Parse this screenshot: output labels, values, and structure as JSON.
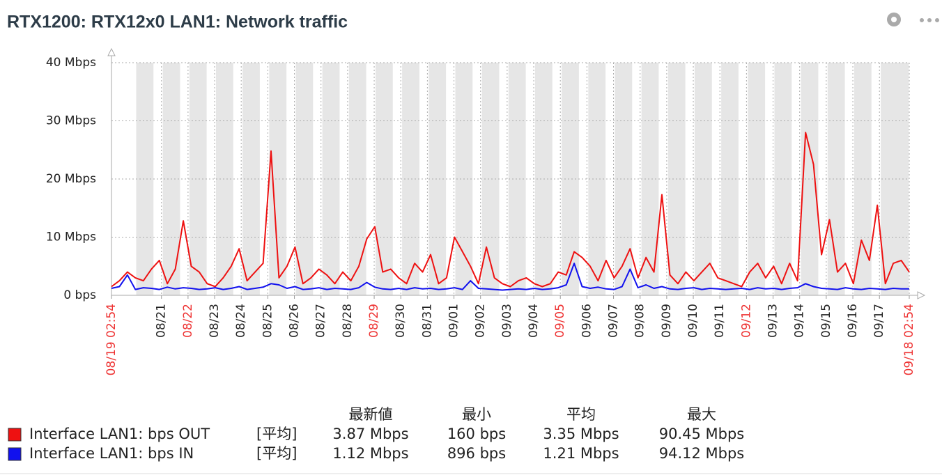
{
  "chart_data": {
    "type": "line",
    "title": "RTX1200: RTX12x0 LAN1: Network traffic",
    "x": [
      0,
      0.3,
      0.6,
      0.9,
      1.2,
      1.5,
      1.8,
      2.1,
      2.4,
      2.7,
      3.0,
      3.3,
      3.6,
      3.9,
      4.2,
      4.5,
      4.8,
      5.1,
      5.4,
      5.7,
      6.0,
      6.3,
      6.6,
      6.9,
      7.2,
      7.5,
      7.8,
      8.1,
      8.4,
      8.7,
      9.0,
      9.3,
      9.6,
      9.9,
      10.2,
      10.5,
      10.8,
      11.1,
      11.4,
      11.7,
      12.0,
      12.3,
      12.6,
      12.9,
      13.2,
      13.5,
      13.8,
      14.1,
      14.4,
      14.7,
      15.0,
      15.3,
      15.6,
      15.9,
      16.2,
      16.5,
      16.8,
      17.1,
      17.4,
      17.7,
      18.0,
      18.3,
      18.6,
      18.9,
      19.2,
      19.5,
      19.8,
      20.1,
      20.4,
      20.7,
      21.0,
      21.3,
      21.6,
      21.9,
      22.2,
      22.5,
      22.8,
      23.1,
      23.4,
      23.7,
      24.0,
      24.3,
      24.6,
      24.9,
      25.2,
      25.5,
      25.8,
      26.1,
      26.4,
      26.7,
      27.0,
      27.3,
      27.6,
      27.9,
      28.2,
      28.5,
      28.8,
      29.1,
      29.4,
      29.7,
      30.0
    ],
    "series": [
      {
        "name": "Interface LAN1: bps OUT",
        "color": "#ee1111",
        "values": [
          1.5,
          2.5,
          4,
          3,
          2.5,
          4.5,
          6,
          2,
          4.5,
          12.8,
          5,
          4,
          2,
          1.5,
          3,
          5,
          8,
          2.5,
          4,
          5.5,
          24.8,
          3,
          5,
          8.3,
          2,
          3,
          4.5,
          3.5,
          2,
          4,
          2.5,
          5,
          9.7,
          11.8,
          4,
          4.5,
          3,
          2,
          5.5,
          4,
          7,
          2,
          3,
          10,
          7.5,
          5,
          2,
          8.3,
          3,
          2,
          1.5,
          2.5,
          3,
          2,
          1.5,
          2,
          4,
          3.5,
          7.5,
          6.5,
          5,
          2.5,
          6,
          3,
          5,
          8,
          3,
          6.5,
          4,
          17.3,
          3.5,
          2,
          4,
          2.5,
          4,
          5.5,
          3,
          2.5,
          2,
          1.5,
          4,
          5.5,
          3,
          5,
          2,
          5.5,
          2.5,
          28,
          22.5,
          7,
          13,
          4,
          5.5,
          2,
          9.5,
          6,
          15.5,
          2,
          5.5,
          6,
          4
        ]
      },
      {
        "name": "Interface LAN1: bps IN",
        "color": "#1111ee",
        "values": [
          1.2,
          1.5,
          3.5,
          1,
          1.3,
          1.2,
          1,
          1.4,
          1.1,
          1.3,
          1.2,
          1,
          1.1,
          1.3,
          1,
          1.2,
          1.5,
          1,
          1.2,
          1.4,
          2,
          1.8,
          1.2,
          1.5,
          1,
          1.1,
          1.3,
          1,
          1.2,
          1.1,
          1,
          1.3,
          2.2,
          1.4,
          1.1,
          1,
          1.2,
          1,
          1.3,
          1.1,
          1.2,
          1,
          1.1,
          1.3,
          1,
          2.5,
          1.2,
          1.1,
          1,
          0.9,
          1,
          1.1,
          1,
          1.2,
          1,
          1.1,
          1.3,
          1.8,
          5.5,
          1.5,
          1.2,
          1.4,
          1.1,
          1,
          1.5,
          4.5,
          1.3,
          1.8,
          1.2,
          1.5,
          1.1,
          1,
          1.2,
          1.3,
          1,
          1.2,
          1.1,
          1,
          1.1,
          1.2,
          1,
          1.3,
          1.1,
          1.2,
          1,
          1.2,
          1.3,
          2,
          1.5,
          1.2,
          1.1,
          1,
          1.3,
          1.1,
          1,
          1.2,
          1.1,
          1,
          1.2,
          1.1,
          1.1
        ]
      }
    ],
    "xlim": [
      0,
      30
    ],
    "xticks": [
      {
        "value": 0,
        "label": "08/19 02:54"
      },
      {
        "value": 1.879,
        "label": "08/21"
      },
      {
        "value": 2.879,
        "label": "08/22"
      },
      {
        "value": 3.879,
        "label": "08/23"
      },
      {
        "value": 4.879,
        "label": "08/24"
      },
      {
        "value": 5.879,
        "label": "08/25"
      },
      {
        "value": 6.879,
        "label": "08/26"
      },
      {
        "value": 7.879,
        "label": "08/27"
      },
      {
        "value": 8.879,
        "label": "08/28"
      },
      {
        "value": 9.879,
        "label": "08/29"
      },
      {
        "value": 10.879,
        "label": "08/30"
      },
      {
        "value": 11.879,
        "label": "08/31"
      },
      {
        "value": 12.879,
        "label": "09/01"
      },
      {
        "value": 13.879,
        "label": "09/02"
      },
      {
        "value": 14.879,
        "label": "09/03"
      },
      {
        "value": 15.879,
        "label": "09/04"
      },
      {
        "value": 16.879,
        "label": "09/05"
      },
      {
        "value": 17.879,
        "label": "09/06"
      },
      {
        "value": 18.879,
        "label": "09/07"
      },
      {
        "value": 19.879,
        "label": "09/08"
      },
      {
        "value": 20.879,
        "label": "09/09"
      },
      {
        "value": 21.879,
        "label": "09/10"
      },
      {
        "value": 22.879,
        "label": "09/11"
      },
      {
        "value": 23.879,
        "label": "09/12"
      },
      {
        "value": 24.879,
        "label": "09/13"
      },
      {
        "value": 25.879,
        "label": "09/14"
      },
      {
        "value": 26.879,
        "label": "09/15"
      },
      {
        "value": 27.879,
        "label": "09/16"
      },
      {
        "value": 28.879,
        "label": "09/17"
      },
      {
        "value": 30,
        "label": "09/18 02:54"
      }
    ],
    "highlight_xticks": [
      0,
      2,
      9,
      16,
      23,
      29
    ],
    "highlight_color": "#ee3333",
    "ylim": [
      0,
      40
    ],
    "yticks": [
      {
        "value": 0,
        "label": "0 bps"
      },
      {
        "value": 10,
        "label": "10 Mbps"
      },
      {
        "value": 20,
        "label": "20 Mbps"
      },
      {
        "value": 30,
        "label": "30 Mbps"
      },
      {
        "value": 40,
        "label": "40 Mbps"
      }
    ],
    "grid": true,
    "legend": {
      "headers": [
        "最新値",
        "最小",
        "平均",
        "最大"
      ],
      "rows": [
        [
          "[平均]",
          "3.87 Mbps",
          "160 bps",
          "3.35 Mbps",
          "90.45 Mbps"
        ],
        [
          "[平均]",
          "1.12 Mbps",
          "896 bps",
          "1.21 Mbps",
          "94.12 Mbps"
        ]
      ]
    }
  }
}
